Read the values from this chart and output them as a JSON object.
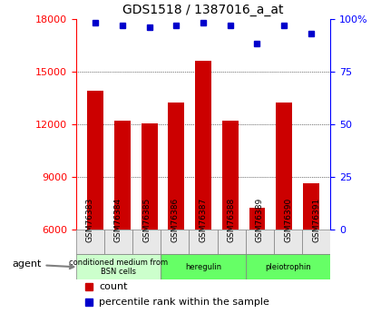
{
  "title": "GDS1518 / 1387016_a_at",
  "categories": [
    "GSM76383",
    "GSM76384",
    "GSM76385",
    "GSM76386",
    "GSM76387",
    "GSM76388",
    "GSM76389",
    "GSM76390",
    "GSM76391"
  ],
  "counts": [
    13900,
    12200,
    12050,
    13200,
    15600,
    12200,
    7200,
    13200,
    8600
  ],
  "percentiles": [
    98,
    97,
    96,
    97,
    98,
    97,
    88,
    97,
    93
  ],
  "ymin": 6000,
  "ymax": 18000,
  "yticks": [
    6000,
    9000,
    12000,
    15000,
    18000
  ],
  "right_yticks": [
    0,
    25,
    50,
    75,
    100
  ],
  "right_ylabels": [
    "0",
    "25",
    "50",
    "75",
    "100%"
  ],
  "bar_color": "#cc0000",
  "dot_color": "#0000cc",
  "agent_groups": [
    {
      "label": "conditioned medium from\nBSN cells",
      "start": 0,
      "end": 3,
      "color": "#ccffcc"
    },
    {
      "label": "heregulin",
      "start": 3,
      "end": 6,
      "color": "#66ff66"
    },
    {
      "label": "pleiotrophin",
      "start": 6,
      "end": 9,
      "color": "#66ff66"
    }
  ],
  "legend_count_color": "#cc0000",
  "legend_dot_color": "#0000cc",
  "bg_color": "#e8e8e8",
  "plot_bg": "#ffffff"
}
